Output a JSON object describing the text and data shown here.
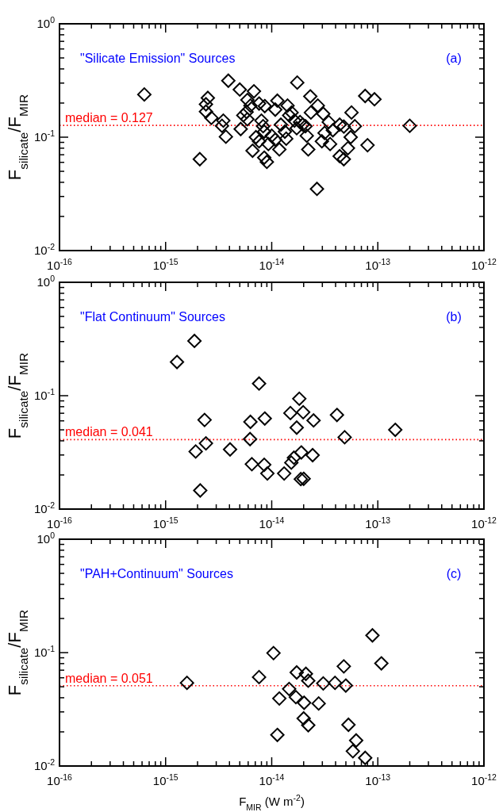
{
  "chart_data": [
    {
      "type": "scatter",
      "ylabel": "F$_{silicate}$/F$_{MIR}$",
      "annotations": [
        "\"Silicate Emission\" Sources",
        "(a)"
      ],
      "log": "xy",
      "marker": "diamond",
      "grid": false,
      "xlim": [
        1e-16,
        1e-12
      ],
      "ylim": [
        0.01,
        1
      ],
      "xticks": [
        {
          "value": 1e-16,
          "label": "10$^{-16}$"
        },
        {
          "value": 2e-16,
          "label": null
        },
        {
          "value": 3e-16,
          "label": null
        },
        {
          "value": 4e-16,
          "label": null
        },
        {
          "value": 5e-16,
          "label": null
        },
        {
          "value": 6e-16,
          "label": null
        },
        {
          "value": 7e-16,
          "label": null
        },
        {
          "value": 8e-16,
          "label": null
        },
        {
          "value": 9e-16,
          "label": null
        },
        {
          "value": 1e-15,
          "label": "10$^{-15}$"
        },
        {
          "value": 2e-15,
          "label": null
        },
        {
          "value": 3e-15,
          "label": null
        },
        {
          "value": 4e-15,
          "label": null
        },
        {
          "value": 5e-15,
          "label": null
        },
        {
          "value": 6e-15,
          "label": null
        },
        {
          "value": 7e-15,
          "label": null
        },
        {
          "value": 8e-15,
          "label": null
        },
        {
          "value": 9e-15,
          "label": null
        },
        {
          "value": 1e-14,
          "label": "10$^{-14}$"
        },
        {
          "value": 2e-14,
          "label": null
        },
        {
          "value": 3e-14,
          "label": null
        },
        {
          "value": 4e-14,
          "label": null
        },
        {
          "value": 5e-14,
          "label": null
        },
        {
          "value": 6e-14,
          "label": null
        },
        {
          "value": 7e-14,
          "label": null
        },
        {
          "value": 8e-14,
          "label": null
        },
        {
          "value": 9e-14,
          "label": null
        },
        {
          "value": 1e-13,
          "label": "10$^{-13}$"
        },
        {
          "value": 2e-13,
          "label": null
        },
        {
          "value": 3e-13,
          "label": null
        },
        {
          "value": 4e-13,
          "label": null
        },
        {
          "value": 5e-13,
          "label": null
        },
        {
          "value": 6e-13,
          "label": null
        },
        {
          "value": 7e-13,
          "label": null
        },
        {
          "value": 8e-13,
          "label": null
        },
        {
          "value": 9e-13,
          "label": null
        },
        {
          "value": 1e-12,
          "label": "10$^{-12}$"
        }
      ],
      "yticks": [
        {
          "value": 0.01,
          "label": "10$^{-2}$"
        },
        {
          "value": 0.02,
          "label": null
        },
        {
          "value": 0.03,
          "label": null
        },
        {
          "value": 0.04,
          "label": null
        },
        {
          "value": 0.05,
          "label": null
        },
        {
          "value": 0.06,
          "label": null
        },
        {
          "value": 0.07,
          "label": null
        },
        {
          "value": 0.08,
          "label": null
        },
        {
          "value": 0.09,
          "label": null
        },
        {
          "value": 0.1,
          "label": "10$^{-1}$"
        },
        {
          "value": 0.2,
          "label": null
        },
        {
          "value": 0.3,
          "label": null
        },
        {
          "value": 0.4,
          "label": null
        },
        {
          "value": 0.5,
          "label": null
        },
        {
          "value": 0.6,
          "label": null
        },
        {
          "value": 0.7,
          "label": null
        },
        {
          "value": 0.8,
          "label": null
        },
        {
          "value": 0.9,
          "label": null
        },
        {
          "value": 1,
          "label": "10$^{0}$"
        }
      ],
      "ref_lines": [
        {
          "axis": "y",
          "value": 0.127,
          "label": "median = 0.127",
          "color": "#ff0000",
          "line_style": "dotted"
        }
      ],
      "series": [
        {
          "color": "#000000",
          "x": [
            6.3e-16,
            2.1e-15,
            3.9e-15,
            5e-15,
            6.8e-15,
            2.5e-15,
            2.4e-15,
            2.4e-15,
            2.7e-15,
            3.5e-15,
            3.4e-15,
            3.7e-15,
            5.1e-15,
            5.9e-15,
            6.3e-15,
            5.4e-15,
            5.8e-15,
            5.9e-15,
            7.6e-15,
            8.6e-15,
            8e-15,
            8.3e-15,
            8.5e-15,
            7.6e-15,
            6.6e-15,
            8.5e-15,
            9e-15,
            9.3e-15,
            1.08e-14,
            1.13e-14,
            1.22e-14,
            1.08e-14,
            1.18e-14,
            1.37e-14,
            1.41e-14,
            1.54e-14,
            1.64e-14,
            1.74e-14,
            1.72e-14,
            1.96e-14,
            2.08e-14,
            2.31e-14,
            2.34e-14,
            2.72e-14,
            3.06e-14,
            3.45e-14,
            2.14e-14,
            2.21e-14,
            2.97e-14,
            3.15e-14,
            3.55e-14,
            3.77e-14,
            4.37e-14,
            4.78e-14,
            5.65e-14,
            6.07e-14,
            5.55e-14,
            5.23e-14,
            4.37e-14,
            4.78e-14,
            7.6e-14,
            9.3e-14,
            8e-14,
            2.67e-14,
            2e-13,
            1.33e-14,
            1e-14,
            7.1e-15,
            1.85e-14,
            1.46e-14
          ],
          "values": [
            0.238,
            0.064,
            0.315,
            0.263,
            0.254,
            0.222,
            0.195,
            0.168,
            0.148,
            0.14,
            0.126,
            0.101,
            0.118,
            0.213,
            0.19,
            0.156,
            0.167,
            0.144,
            0.198,
            0.188,
            0.14,
            0.125,
            0.112,
            0.092,
            0.076,
            0.066,
            0.0605,
            0.087,
            0.175,
            0.21,
            0.129,
            0.095,
            0.078,
            0.097,
            0.19,
            0.165,
            0.14,
            0.303,
            0.12,
            0.129,
            0.125,
            0.229,
            0.165,
            0.19,
            0.161,
            0.136,
            0.103,
            0.078,
            0.092,
            0.109,
            0.087,
            0.115,
            0.129,
            0.124,
            0.165,
            0.125,
            0.1,
            0.08,
            0.068,
            0.064,
            0.231,
            0.216,
            0.085,
            0.035,
            0.126,
            0.112,
            0.103,
            0.1,
            0.136,
            0.156
          ]
        }
      ]
    },
    {
      "type": "scatter",
      "ylabel": "F$_{silicate}$/F$_{MIR}$",
      "annotations": [
        "\"Flat Continuum\" Sources",
        "(b)"
      ],
      "log": "xy",
      "marker": "diamond",
      "grid": false,
      "xlim": [
        1e-16,
        1e-12
      ],
      "ylim": [
        0.01,
        1
      ],
      "xticks": [
        {
          "value": 1e-16,
          "label": "10$^{-16}$"
        },
        {
          "value": 2e-16,
          "label": null
        },
        {
          "value": 3e-16,
          "label": null
        },
        {
          "value": 4e-16,
          "label": null
        },
        {
          "value": 5e-16,
          "label": null
        },
        {
          "value": 6e-16,
          "label": null
        },
        {
          "value": 7e-16,
          "label": null
        },
        {
          "value": 8e-16,
          "label": null
        },
        {
          "value": 9e-16,
          "label": null
        },
        {
          "value": 1e-15,
          "label": "10$^{-15}$"
        },
        {
          "value": 2e-15,
          "label": null
        },
        {
          "value": 3e-15,
          "label": null
        },
        {
          "value": 4e-15,
          "label": null
        },
        {
          "value": 5e-15,
          "label": null
        },
        {
          "value": 6e-15,
          "label": null
        },
        {
          "value": 7e-15,
          "label": null
        },
        {
          "value": 8e-15,
          "label": null
        },
        {
          "value": 9e-15,
          "label": null
        },
        {
          "value": 1e-14,
          "label": "10$^{-14}$"
        },
        {
          "value": 2e-14,
          "label": null
        },
        {
          "value": 3e-14,
          "label": null
        },
        {
          "value": 4e-14,
          "label": null
        },
        {
          "value": 5e-14,
          "label": null
        },
        {
          "value": 6e-14,
          "label": null
        },
        {
          "value": 7e-14,
          "label": null
        },
        {
          "value": 8e-14,
          "label": null
        },
        {
          "value": 9e-14,
          "label": null
        },
        {
          "value": 1e-13,
          "label": "10$^{-13}$"
        },
        {
          "value": 2e-13,
          "label": null
        },
        {
          "value": 3e-13,
          "label": null
        },
        {
          "value": 4e-13,
          "label": null
        },
        {
          "value": 5e-13,
          "label": null
        },
        {
          "value": 6e-13,
          "label": null
        },
        {
          "value": 7e-13,
          "label": null
        },
        {
          "value": 8e-13,
          "label": null
        },
        {
          "value": 9e-13,
          "label": null
        },
        {
          "value": 1e-12,
          "label": "10$^{-12}$"
        }
      ],
      "yticks": [
        {
          "value": 0.01,
          "label": "10$^{-2}$"
        },
        {
          "value": 0.02,
          "label": null
        },
        {
          "value": 0.03,
          "label": null
        },
        {
          "value": 0.04,
          "label": null
        },
        {
          "value": 0.05,
          "label": null
        },
        {
          "value": 0.06,
          "label": null
        },
        {
          "value": 0.07,
          "label": null
        },
        {
          "value": 0.08,
          "label": null
        },
        {
          "value": 0.09,
          "label": null
        },
        {
          "value": 0.1,
          "label": "10$^{-1}$"
        },
        {
          "value": 0.2,
          "label": null
        },
        {
          "value": 0.3,
          "label": null
        },
        {
          "value": 0.4,
          "label": null
        },
        {
          "value": 0.5,
          "label": null
        },
        {
          "value": 0.6,
          "label": null
        },
        {
          "value": 0.7,
          "label": null
        },
        {
          "value": 0.8,
          "label": null
        },
        {
          "value": 0.9,
          "label": null
        },
        {
          "value": 1,
          "label": "10$^{0}$"
        }
      ],
      "ref_lines": [
        {
          "axis": "y",
          "value": 0.041,
          "label": "median = 0.041",
          "color": "#ff0000",
          "line_style": "dotted"
        }
      ],
      "series": [
        {
          "color": "#000000",
          "x": [
            1.87e-15,
            1.28e-15,
            7.6e-15,
            1.82e-14,
            1.5e-14,
            1.98e-14,
            2.48e-14,
            4.12e-14,
            1.72e-14,
            1.46e-13,
            4.87e-14,
            2.33e-15,
            6.3e-15,
            8.6e-15,
            6.25e-15,
            2.4e-15,
            1.92e-15,
            4.05e-15,
            6.5e-15,
            8.5e-15,
            9.1e-15,
            1.31e-14,
            1.53e-14,
            1.62e-14,
            1.9e-14,
            2.43e-14,
            1.88e-14,
            2e-14,
            2.12e-15
          ],
          "values": [
            0.304,
            0.198,
            0.128,
            0.094,
            0.0703,
            0.0715,
            0.0605,
            0.0676,
            0.0523,
            0.05,
            0.043,
            0.0611,
            0.0588,
            0.0629,
            0.0414,
            0.038,
            0.0322,
            0.0336,
            0.0249,
            0.0246,
            0.0206,
            0.0206,
            0.0257,
            0.0284,
            0.0316,
            0.0299,
            0.0184,
            0.0185,
            0.0146
          ]
        }
      ]
    },
    {
      "type": "scatter",
      "ylabel": "F$_{silicate}$/F$_{MIR}$",
      "xlabel": "F$_{MIR}$ (W m$^{-2}$)",
      "annotations": [
        "\"PAH+Continuum\" Sources",
        "(c)"
      ],
      "log": "xy",
      "marker": "diamond",
      "grid": false,
      "xlim": [
        1e-16,
        1e-12
      ],
      "ylim": [
        0.01,
        1
      ],
      "xticks": [
        {
          "value": 1e-16,
          "label": "10$^{-16}$"
        },
        {
          "value": 2e-16,
          "label": null
        },
        {
          "value": 3e-16,
          "label": null
        },
        {
          "value": 4e-16,
          "label": null
        },
        {
          "value": 5e-16,
          "label": null
        },
        {
          "value": 6e-16,
          "label": null
        },
        {
          "value": 7e-16,
          "label": null
        },
        {
          "value": 8e-16,
          "label": null
        },
        {
          "value": 9e-16,
          "label": null
        },
        {
          "value": 1e-15,
          "label": "10$^{-15}$"
        },
        {
          "value": 2e-15,
          "label": null
        },
        {
          "value": 3e-15,
          "label": null
        },
        {
          "value": 4e-15,
          "label": null
        },
        {
          "value": 5e-15,
          "label": null
        },
        {
          "value": 6e-15,
          "label": null
        },
        {
          "value": 7e-15,
          "label": null
        },
        {
          "value": 8e-15,
          "label": null
        },
        {
          "value": 9e-15,
          "label": null
        },
        {
          "value": 1e-14,
          "label": "10$^{-14}$"
        },
        {
          "value": 2e-14,
          "label": null
        },
        {
          "value": 3e-14,
          "label": null
        },
        {
          "value": 4e-14,
          "label": null
        },
        {
          "value": 5e-14,
          "label": null
        },
        {
          "value": 6e-14,
          "label": null
        },
        {
          "value": 7e-14,
          "label": null
        },
        {
          "value": 8e-14,
          "label": null
        },
        {
          "value": 9e-14,
          "label": null
        },
        {
          "value": 1e-13,
          "label": "10$^{-13}$"
        },
        {
          "value": 2e-13,
          "label": null
        },
        {
          "value": 3e-13,
          "label": null
        },
        {
          "value": 4e-13,
          "label": null
        },
        {
          "value": 5e-13,
          "label": null
        },
        {
          "value": 6e-13,
          "label": null
        },
        {
          "value": 7e-13,
          "label": null
        },
        {
          "value": 8e-13,
          "label": null
        },
        {
          "value": 9e-13,
          "label": null
        },
        {
          "value": 1e-12,
          "label": "10$^{-12}$"
        }
      ],
      "yticks": [
        {
          "value": 0.01,
          "label": "10$^{-2}$"
        },
        {
          "value": 0.02,
          "label": null
        },
        {
          "value": 0.03,
          "label": null
        },
        {
          "value": 0.04,
          "label": null
        },
        {
          "value": 0.05,
          "label": null
        },
        {
          "value": 0.06,
          "label": null
        },
        {
          "value": 0.07,
          "label": null
        },
        {
          "value": 0.08,
          "label": null
        },
        {
          "value": 0.09,
          "label": null
        },
        {
          "value": 0.1,
          "label": "10$^{-1}$"
        },
        {
          "value": 0.2,
          "label": null
        },
        {
          "value": 0.3,
          "label": null
        },
        {
          "value": 0.4,
          "label": null
        },
        {
          "value": 0.5,
          "label": null
        },
        {
          "value": 0.6,
          "label": null
        },
        {
          "value": 0.7,
          "label": null
        },
        {
          "value": 0.8,
          "label": null
        },
        {
          "value": 0.9,
          "label": null
        },
        {
          "value": 1,
          "label": "10$^{0}$"
        }
      ],
      "ref_lines": [
        {
          "axis": "y",
          "value": 0.051,
          "label": "median = 0.051",
          "color": "#ff0000",
          "line_style": "dotted"
        }
      ],
      "series": [
        {
          "color": "#000000",
          "x": [
            1.59e-15,
            7.6e-15,
            1.04e-14,
            8.9e-14,
            1.08e-13,
            4.78e-14,
            1.72e-14,
            2.1e-14,
            2.21e-14,
            3.06e-14,
            3.95e-14,
            4.99e-14,
            1.46e-14,
            1.18e-14,
            1.69e-14,
            2.02e-14,
            2.77e-14,
            2e-14,
            2.21e-14,
            5.29e-14,
            1.13e-14,
            6.25e-14,
            5.82e-14,
            7.6e-14
          ],
          "values": [
            0.0541,
            0.0608,
            0.099,
            0.142,
            0.0804,
            0.0756,
            0.0669,
            0.065,
            0.0565,
            0.0535,
            0.0541,
            0.0512,
            0.0478,
            0.0394,
            0.0405,
            0.0361,
            0.0356,
            0.0263,
            0.0229,
            0.0231,
            0.0188,
            0.0168,
            0.0135,
            0.0118
          ]
        }
      ]
    }
  ]
}
